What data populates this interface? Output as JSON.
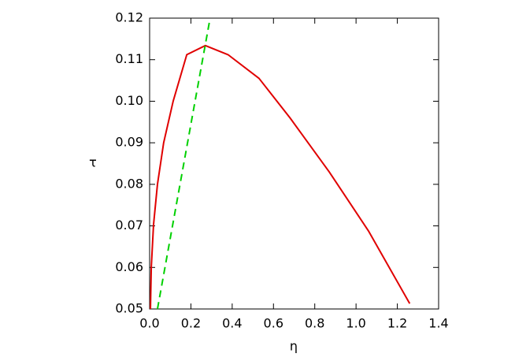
{
  "chart_data": {
    "type": "line",
    "x_label": "η",
    "y_label": "τ",
    "xlim": [
      0,
      1.4
    ],
    "ylim": [
      0.05,
      0.12
    ],
    "xticks": [
      {
        "value": 0,
        "label": "0.0"
      },
      0.2,
      0.4,
      0.6,
      0.8,
      {
        "value": 1,
        "label": "1.0"
      },
      1.2,
      1.4
    ],
    "yticks": [
      0.05,
      0.06,
      0.07,
      0.08,
      0.09,
      {
        "value": 0.1,
        "label": "0.10"
      },
      0.11,
      0.12
    ],
    "grid": false,
    "series": [
      {
        "color": "#e00000",
        "dash": false,
        "x": [
          0.004,
          0.008,
          0.019,
          0.038,
          0.068,
          0.114,
          0.18,
          0.27,
          0.38,
          0.53,
          0.68,
          0.87,
          1.06,
          1.26
        ],
        "values": [
          0.05,
          0.06,
          0.0703,
          0.08,
          0.09,
          0.1,
          0.1112,
          0.1134,
          0.1112,
          0.1055,
          0.096,
          0.083,
          0.0688,
          0.0513
        ]
      },
      {
        "color": "#00d000",
        "dash": true,
        "x": [
          0.038,
          0.293
        ],
        "values": [
          0.05,
          0.12
        ]
      }
    ]
  }
}
